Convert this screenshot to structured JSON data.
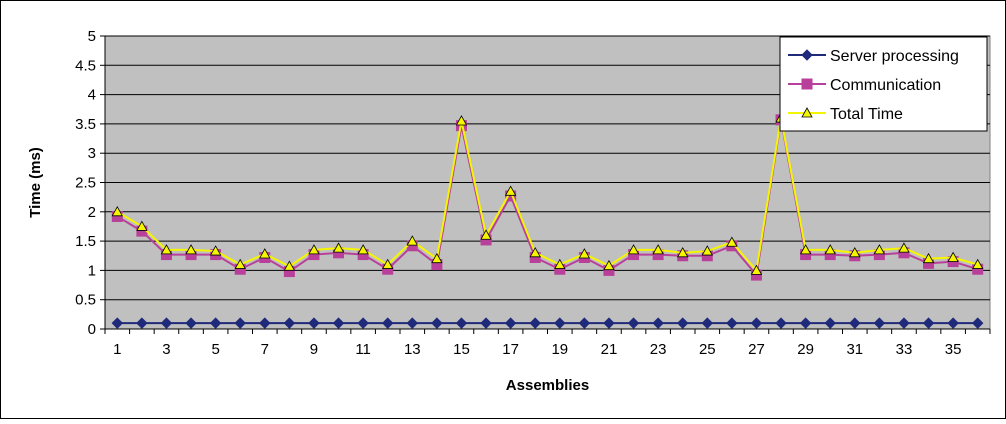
{
  "chart_data": {
    "type": "line",
    "title": "",
    "xlabel": "Assemblies",
    "ylabel": "Time (ms)",
    "ylim": [
      0,
      5
    ],
    "yticks": [
      "0",
      "0.5",
      "1",
      "1.5",
      "2",
      "2.5",
      "3",
      "3.5",
      "4",
      "4.5",
      "5"
    ],
    "ytick_values": [
      0,
      0.5,
      1,
      1.5,
      2,
      2.5,
      3,
      3.5,
      4,
      4.5,
      5
    ],
    "x": [
      1,
      2,
      3,
      4,
      5,
      6,
      7,
      8,
      9,
      10,
      11,
      12,
      13,
      14,
      15,
      16,
      17,
      18,
      19,
      20,
      21,
      22,
      23,
      24,
      25,
      26,
      27,
      28,
      29,
      30,
      31,
      32,
      33,
      34,
      35,
      36
    ],
    "xtick_labels": [
      1,
      3,
      5,
      7,
      9,
      11,
      13,
      15,
      17,
      19,
      21,
      23,
      25,
      27,
      29,
      31,
      33,
      35
    ],
    "grid": true,
    "plot_background": "#c0c0c0",
    "legend_position": "top-right",
    "series": [
      {
        "name": "Server processing",
        "color": "#1f2a7a",
        "marker": "diamond",
        "values": [
          0.1,
          0.1,
          0.1,
          0.1,
          0.1,
          0.1,
          0.1,
          0.1,
          0.1,
          0.1,
          0.1,
          0.1,
          0.1,
          0.1,
          0.1,
          0.1,
          0.1,
          0.1,
          0.1,
          0.1,
          0.1,
          0.1,
          0.1,
          0.1,
          0.1,
          0.1,
          0.1,
          0.1,
          0.1,
          0.1,
          0.1,
          0.1,
          0.1,
          0.1,
          0.1,
          0.1
        ]
      },
      {
        "name": "Communication",
        "color": "#b8409a",
        "marker": "square",
        "values": [
          1.92,
          1.67,
          1.27,
          1.27,
          1.27,
          1.02,
          1.22,
          0.98,
          1.27,
          1.3,
          1.27,
          1.02,
          1.42,
          1.1,
          3.47,
          1.52,
          2.27,
          1.22,
          1.02,
          1.22,
          1.0,
          1.27,
          1.27,
          1.25,
          1.25,
          1.42,
          0.92,
          3.57,
          1.27,
          1.27,
          1.25,
          1.27,
          1.3,
          1.12,
          1.15,
          1.02
        ]
      },
      {
        "name": "Total Time",
        "color": "#f5f500",
        "marker": "triangle",
        "values": [
          2.0,
          1.75,
          1.35,
          1.35,
          1.33,
          1.1,
          1.28,
          1.07,
          1.35,
          1.38,
          1.35,
          1.1,
          1.5,
          1.2,
          3.55,
          1.6,
          2.35,
          1.3,
          1.1,
          1.28,
          1.08,
          1.35,
          1.35,
          1.3,
          1.33,
          1.48,
          1.0,
          3.6,
          1.35,
          1.35,
          1.3,
          1.35,
          1.38,
          1.2,
          1.22,
          1.1
        ]
      }
    ]
  }
}
